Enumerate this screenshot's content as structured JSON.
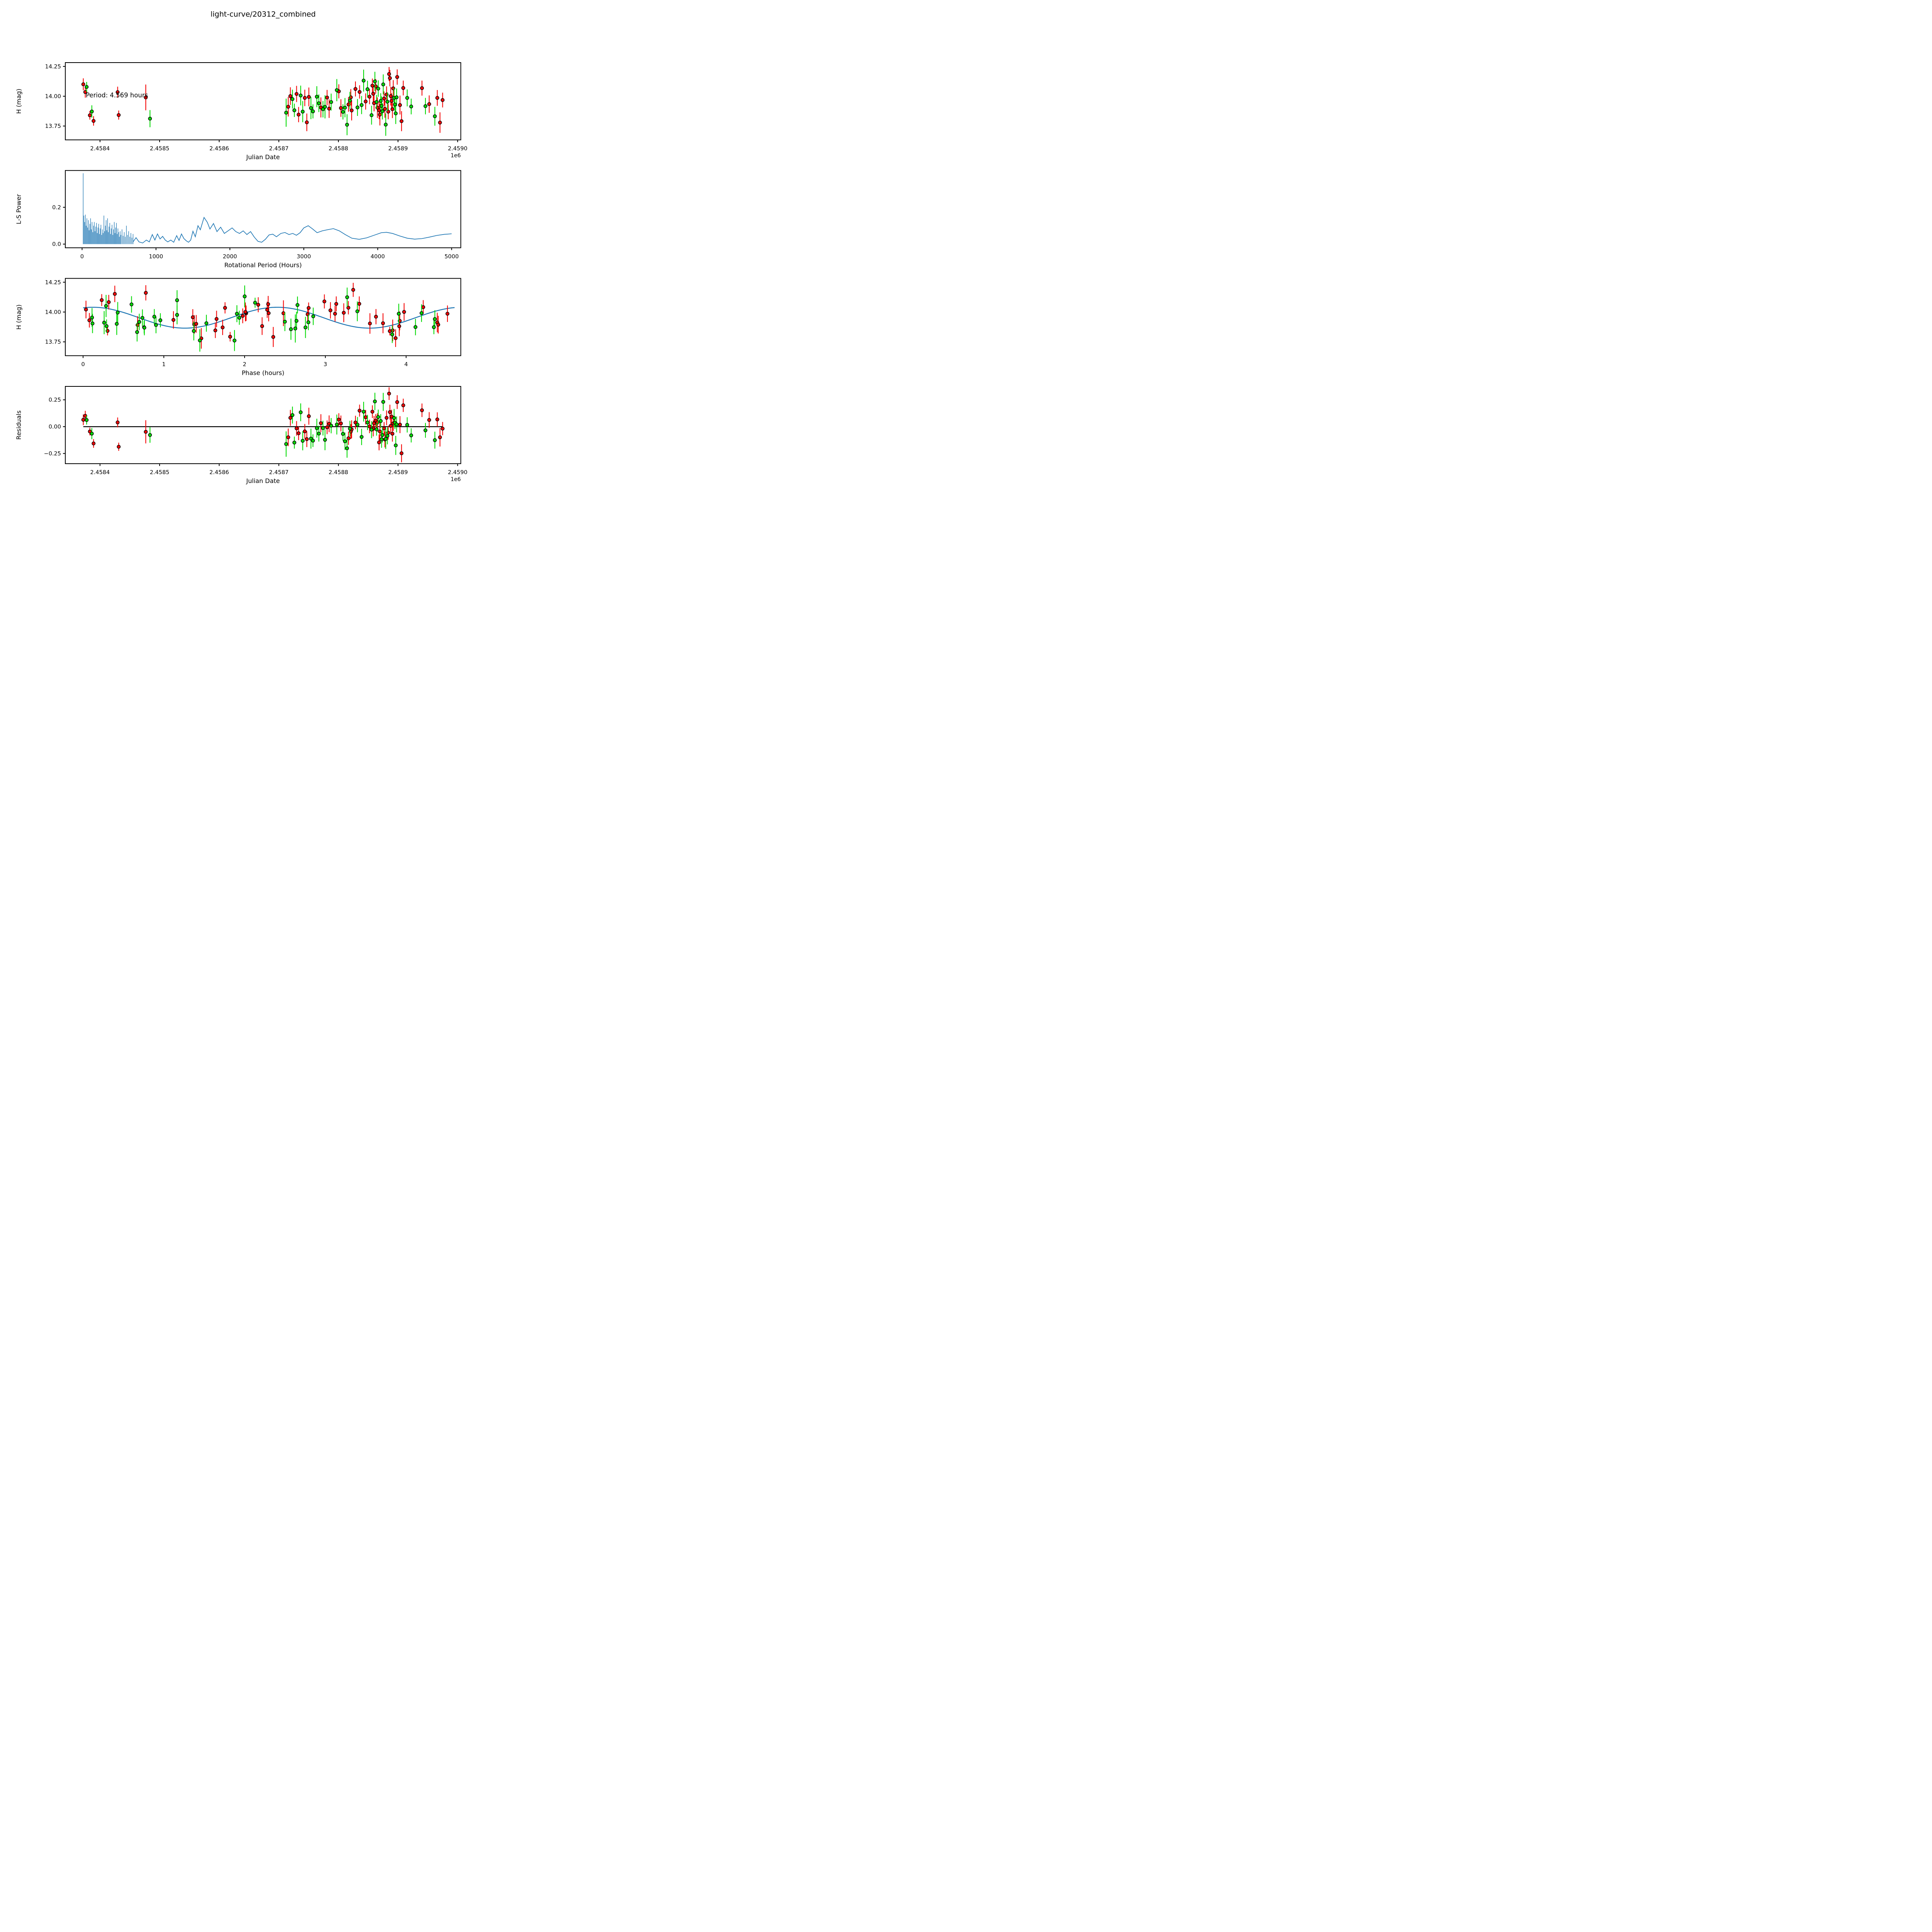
{
  "title": "light-curve/20312_combined",
  "colors": {
    "red_series": "#f40000",
    "green_series": "#00d900",
    "line_blue": "#1f77b4",
    "axis_black": "#000000",
    "background": "#ffffff"
  },
  "bands": {
    "0": "red",
    "1": "green"
  },
  "observations": {
    "columns": [
      "julian_date",
      "H_mag",
      "err_mag",
      "band"
    ],
    "points": [
      [
        2458372.0,
        14.1,
        0.05,
        0
      ],
      [
        2458375.3,
        14.035,
        0.047,
        0
      ],
      [
        2458377.6,
        14.078,
        0.042,
        1
      ],
      [
        2458383.0,
        13.84,
        0.036,
        0
      ],
      [
        2458386.3,
        13.872,
        0.052,
        1
      ],
      [
        2458389.2,
        13.793,
        0.04,
        0
      ],
      [
        2458429.6,
        14.034,
        0.046,
        0
      ],
      [
        2458431.4,
        13.842,
        0.038,
        0
      ],
      [
        2458476.8,
        13.99,
        0.108,
        0
      ],
      [
        2458483.9,
        13.812,
        0.072,
        1
      ],
      [
        2458712.3,
        13.862,
        0.118,
        1
      ],
      [
        2458715.8,
        13.912,
        0.082,
        0
      ],
      [
        2458719.4,
        14.001,
        0.074,
        0
      ],
      [
        2458722.9,
        13.976,
        0.079,
        1
      ],
      [
        2458726.1,
        13.882,
        0.056,
        1
      ],
      [
        2458729.8,
        14.019,
        0.068,
        0
      ],
      [
        2458733.2,
        13.846,
        0.064,
        0
      ],
      [
        2458736.7,
        14.006,
        0.083,
        1
      ],
      [
        2458740.1,
        13.871,
        0.089,
        1
      ],
      [
        2458743.6,
        13.986,
        0.069,
        0
      ],
      [
        2458747.0,
        13.781,
        0.074,
        0
      ],
      [
        2458750.4,
        13.994,
        0.079,
        0
      ],
      [
        2458753.9,
        13.901,
        0.093,
        1
      ],
      [
        2458757.3,
        13.873,
        0.059,
        1
      ],
      [
        2458763.8,
        13.996,
        0.088,
        1
      ],
      [
        2458767.2,
        13.941,
        0.074,
        1
      ],
      [
        2458770.6,
        13.906,
        0.084,
        0
      ],
      [
        2458774.1,
        13.891,
        0.069,
        1
      ],
      [
        2458777.5,
        13.911,
        0.097,
        1
      ],
      [
        2458781.0,
        13.989,
        0.064,
        0
      ],
      [
        2458784.4,
        13.896,
        0.078,
        0
      ],
      [
        2458787.8,
        13.951,
        0.071,
        1
      ],
      [
        2458797.3,
        14.051,
        0.093,
        1
      ],
      [
        2458800.7,
        14.041,
        0.059,
        0
      ],
      [
        2458804.2,
        13.901,
        0.074,
        0
      ],
      [
        2458807.6,
        13.869,
        0.064,
        1
      ],
      [
        2458811.0,
        13.904,
        0.081,
        1
      ],
      [
        2458814.5,
        13.761,
        0.088,
        1
      ],
      [
        2458816.9,
        13.931,
        0.061,
        0
      ],
      [
        2458819.3,
        13.964,
        0.073,
        1
      ],
      [
        2458820.8,
        13.991,
        0.069,
        0
      ],
      [
        2458822.2,
        13.881,
        0.084,
        0
      ],
      [
        2458828.6,
        14.061,
        0.063,
        0
      ],
      [
        2458832.0,
        13.906,
        0.071,
        1
      ],
      [
        2458835.5,
        14.036,
        0.056,
        0
      ],
      [
        2458838.9,
        13.926,
        0.076,
        1
      ],
      [
        2458842.3,
        14.131,
        0.092,
        1
      ],
      [
        2458845.7,
        13.956,
        0.068,
        0
      ],
      [
        2458848.8,
        14.059,
        0.071,
        1
      ],
      [
        2458852.2,
        13.996,
        0.063,
        0
      ],
      [
        2458855.6,
        13.841,
        0.079,
        1
      ],
      [
        2458857.0,
        14.089,
        0.059,
        0
      ],
      [
        2458858.4,
        14.021,
        0.074,
        0
      ],
      [
        2458859.8,
        13.942,
        0.069,
        0
      ],
      [
        2458861.2,
        14.124,
        0.081,
        1
      ],
      [
        2458862.6,
        14.083,
        0.061,
        0
      ],
      [
        2458864.0,
        13.952,
        0.059,
        1
      ],
      [
        2458865.4,
        13.904,
        0.086,
        0
      ],
      [
        2458866.8,
        14.064,
        0.069,
        1
      ],
      [
        2458868.2,
        13.882,
        0.074,
        0
      ],
      [
        2458869.6,
        13.846,
        0.091,
        0
      ],
      [
        2458871.0,
        13.961,
        0.064,
        1
      ],
      [
        2458872.4,
        13.919,
        0.079,
        1
      ],
      [
        2458873.8,
        13.874,
        0.069,
        1
      ],
      [
        2458875.2,
        14.099,
        0.084,
        1
      ],
      [
        2458876.6,
        13.981,
        0.059,
        0
      ],
      [
        2458878.0,
        13.894,
        0.074,
        0
      ],
      [
        2458879.4,
        13.762,
        0.094,
        1
      ],
      [
        2458880.8,
        14.014,
        0.069,
        0
      ],
      [
        2458882.2,
        13.954,
        0.079,
        1
      ],
      [
        2458883.6,
        13.871,
        0.064,
        0
      ],
      [
        2458885.0,
        14.186,
        0.059,
        0
      ],
      [
        2458886.4,
        14.152,
        0.069,
        0
      ],
      [
        2458887.8,
        14.001,
        0.079,
        0
      ],
      [
        2458889.2,
        13.961,
        0.064,
        0
      ],
      [
        2458890.6,
        13.891,
        0.074,
        0
      ],
      [
        2458892.0,
        14.066,
        0.069,
        0
      ],
      [
        2458893.4,
        13.986,
        0.084,
        1
      ],
      [
        2458894.8,
        13.931,
        0.059,
        1
      ],
      [
        2458896.2,
        13.856,
        0.089,
        1
      ],
      [
        2458897.6,
        13.991,
        0.074,
        1
      ],
      [
        2458898.6,
        14.161,
        0.064,
        0
      ],
      [
        2458903.3,
        13.926,
        0.079,
        0
      ],
      [
        2458905.9,
        13.791,
        0.084,
        0
      ],
      [
        2458908.8,
        14.069,
        0.062,
        0
      ],
      [
        2458915.4,
        13.986,
        0.071,
        1
      ],
      [
        2458922.1,
        13.914,
        0.066,
        1
      ],
      [
        2458940.2,
        14.068,
        0.063,
        0
      ],
      [
        2458946.0,
        13.917,
        0.069,
        1
      ],
      [
        2458952.3,
        13.934,
        0.073,
        0
      ],
      [
        2458961.8,
        13.832,
        0.079,
        1
      ],
      [
        2458965.9,
        13.986,
        0.066,
        0
      ],
      [
        2458970.4,
        13.779,
        0.086,
        0
      ],
      [
        2458974.8,
        13.968,
        0.062,
        0
      ]
    ]
  },
  "chart_data": [
    {
      "type": "scatter",
      "id": "lightcurve",
      "xlabel": "Julian Date",
      "ylabel": "H (mag)",
      "x_offset_text": "1e6",
      "annotation": "Period: 4.569 hours",
      "xlim": [
        2458341.8,
        2459005.3
      ],
      "ylim": [
        13.634,
        14.282
      ],
      "xticks": [
        2458400,
        2458500,
        2458600,
        2458700,
        2458800,
        2458900,
        2459000
      ],
      "xtick_labels": [
        "2.4584",
        "2.4585",
        "2.4586",
        "2.4587",
        "2.4588",
        "2.4589",
        "2.4590"
      ],
      "yticks": [
        13.75,
        14.0,
        14.25
      ],
      "ytick_labels": [
        "13.75",
        "14.00",
        "14.25"
      ],
      "legend_position": "none",
      "grid": false
    },
    {
      "type": "line",
      "id": "periodogram",
      "xlabel": "Rotational Period (Hours)",
      "ylabel": "L-S Power",
      "xlim": [
        -227,
        5124
      ],
      "ylim": [
        -0.02,
        0.4
      ],
      "xticks": [
        0,
        1000,
        2000,
        3000,
        4000,
        5000
      ],
      "xtick_labels": [
        "0",
        "1000",
        "2000",
        "3000",
        "4000",
        "5000"
      ],
      "yticks": [
        0.0,
        0.2
      ],
      "ytick_labels": [
        "0.0",
        "0.2"
      ],
      "grid": false,
      "spikes": [
        [
          15,
          0.385
        ],
        [
          25,
          0.155
        ],
        [
          35,
          0.12
        ],
        [
          45,
          0.16
        ],
        [
          55,
          0.1
        ],
        [
          65,
          0.14
        ],
        [
          75,
          0.09
        ],
        [
          85,
          0.13
        ],
        [
          95,
          0.075
        ],
        [
          105,
          0.11
        ],
        [
          115,
          0.14
        ],
        [
          125,
          0.08
        ],
        [
          135,
          0.12
        ],
        [
          145,
          0.065
        ],
        [
          155,
          0.1
        ],
        [
          165,
          0.12
        ],
        [
          175,
          0.07
        ],
        [
          185,
          0.095
        ],
        [
          195,
          0.115
        ],
        [
          205,
          0.06
        ],
        [
          215,
          0.09
        ],
        [
          225,
          0.11
        ],
        [
          235,
          0.055
        ],
        [
          245,
          0.085
        ],
        [
          255,
          0.105
        ],
        [
          265,
          0.05
        ],
        [
          275,
          0.08
        ],
        [
          285,
          0.06
        ],
        [
          295,
          0.155
        ],
        [
          305,
          0.07
        ],
        [
          315,
          0.1
        ],
        [
          325,
          0.13
        ],
        [
          335,
          0.075
        ],
        [
          345,
          0.14
        ],
        [
          355,
          0.065
        ],
        [
          365,
          0.095
        ],
        [
          375,
          0.115
        ],
        [
          385,
          0.055
        ],
        [
          395,
          0.085
        ],
        [
          405,
          0.105
        ],
        [
          415,
          0.05
        ],
        [
          425,
          0.08
        ],
        [
          435,
          0.12
        ],
        [
          445,
          0.06
        ],
        [
          455,
          0.09
        ],
        [
          465,
          0.115
        ],
        [
          475,
          0.055
        ],
        [
          485,
          0.085
        ],
        [
          495,
          0.065
        ],
        [
          505,
          0.04
        ],
        [
          515,
          0.07
        ],
        [
          525,
          0.05
        ],
        [
          540,
          0.08
        ],
        [
          555,
          0.045
        ],
        [
          570,
          0.065
        ],
        [
          585,
          0.04
        ],
        [
          600,
          0.1
        ],
        [
          615,
          0.05
        ],
        [
          630,
          0.07
        ],
        [
          645,
          0.04
        ],
        [
          660,
          0.06
        ],
        [
          675,
          0.035
        ],
        [
          690,
          0.055
        ]
      ],
      "curve": [
        [
          690,
          0.012
        ],
        [
          730,
          0.035
        ],
        [
          770,
          0.012
        ],
        [
          820,
          0.006
        ],
        [
          870,
          0.022
        ],
        [
          910,
          0.012
        ],
        [
          950,
          0.052
        ],
        [
          985,
          0.022
        ],
        [
          1020,
          0.055
        ],
        [
          1055,
          0.028
        ],
        [
          1090,
          0.042
        ],
        [
          1125,
          0.022
        ],
        [
          1160,
          0.012
        ],
        [
          1200,
          0.022
        ],
        [
          1240,
          0.01
        ],
        [
          1280,
          0.046
        ],
        [
          1312,
          0.02
        ],
        [
          1345,
          0.055
        ],
        [
          1378,
          0.03
        ],
        [
          1410,
          0.018
        ],
        [
          1440,
          0.01
        ],
        [
          1470,
          0.022
        ],
        [
          1500,
          0.07
        ],
        [
          1532,
          0.04
        ],
        [
          1568,
          0.1
        ],
        [
          1600,
          0.078
        ],
        [
          1650,
          0.145
        ],
        [
          1695,
          0.118
        ],
        [
          1730,
          0.082
        ],
        [
          1778,
          0.112
        ],
        [
          1825,
          0.068
        ],
        [
          1875,
          0.092
        ],
        [
          1925,
          0.058
        ],
        [
          1975,
          0.072
        ],
        [
          2030,
          0.088
        ],
        [
          2080,
          0.068
        ],
        [
          2130,
          0.058
        ],
        [
          2180,
          0.072
        ],
        [
          2230,
          0.052
        ],
        [
          2280,
          0.068
        ],
        [
          2330,
          0.038
        ],
        [
          2380,
          0.015
        ],
        [
          2430,
          0.01
        ],
        [
          2480,
          0.026
        ],
        [
          2530,
          0.05
        ],
        [
          2580,
          0.054
        ],
        [
          2630,
          0.04
        ],
        [
          2690,
          0.058
        ],
        [
          2745,
          0.063
        ],
        [
          2800,
          0.052
        ],
        [
          2850,
          0.058
        ],
        [
          2900,
          0.048
        ],
        [
          2950,
          0.062
        ],
        [
          3000,
          0.088
        ],
        [
          3060,
          0.1
        ],
        [
          3120,
          0.082
        ],
        [
          3180,
          0.062
        ],
        [
          3250,
          0.072
        ],
        [
          3320,
          0.078
        ],
        [
          3400,
          0.084
        ],
        [
          3480,
          0.072
        ],
        [
          3560,
          0.052
        ],
        [
          3650,
          0.032
        ],
        [
          3750,
          0.026
        ],
        [
          3850,
          0.034
        ],
        [
          3950,
          0.048
        ],
        [
          4050,
          0.062
        ],
        [
          4120,
          0.064
        ],
        [
          4200,
          0.058
        ],
        [
          4300,
          0.044
        ],
        [
          4400,
          0.032
        ],
        [
          4500,
          0.027
        ],
        [
          4600,
          0.03
        ],
        [
          4700,
          0.038
        ],
        [
          4800,
          0.047
        ],
        [
          4900,
          0.053
        ],
        [
          5000,
          0.056
        ]
      ]
    },
    {
      "type": "scatter",
      "id": "phased",
      "xlabel": "Phase (hours)",
      "ylabel": "H (mag)",
      "xlim": [
        -0.22,
        4.677
      ],
      "ylim": [
        13.634,
        14.282
      ],
      "xticks": [
        0,
        1,
        2,
        3,
        4
      ],
      "xtick_labels": [
        "0",
        "1",
        "2",
        "3",
        "4"
      ],
      "yticks": [
        13.75,
        14.0,
        14.25
      ],
      "ytick_labels": [
        "13.75",
        "14.00",
        "14.25"
      ],
      "grid": false,
      "fit": {
        "rotation_period_hours": 4.569,
        "fold_period_hours": 4.569,
        "model_period_hours": 2.2845,
        "mean_mag": 13.9525,
        "amplitude_mag": 0.0875,
        "phase_of_max_hours": 0.12,
        "epoch_jd": 2458371.8,
        "curve_range_hours": [
          0,
          4.6
        ]
      }
    },
    {
      "type": "scatter",
      "id": "residuals",
      "xlabel": "Julian Date",
      "ylabel": "Residuals",
      "x_offset_text": "1e6",
      "xlim": [
        2458341.8,
        2459005.3
      ],
      "ylim": [
        -0.345,
        0.375
      ],
      "xticks": [
        2458400,
        2458500,
        2458600,
        2458700,
        2458800,
        2458900,
        2459000
      ],
      "xtick_labels": [
        "2.4584",
        "2.4585",
        "2.4586",
        "2.4587",
        "2.4588",
        "2.4589",
        "2.4590"
      ],
      "yticks": [
        -0.25,
        0.0,
        0.25
      ],
      "ytick_labels": [
        "−0.25",
        "0.00",
        "0.25"
      ],
      "zero_line_jd": [
        2458372,
        2458975
      ],
      "grid": false
    }
  ]
}
